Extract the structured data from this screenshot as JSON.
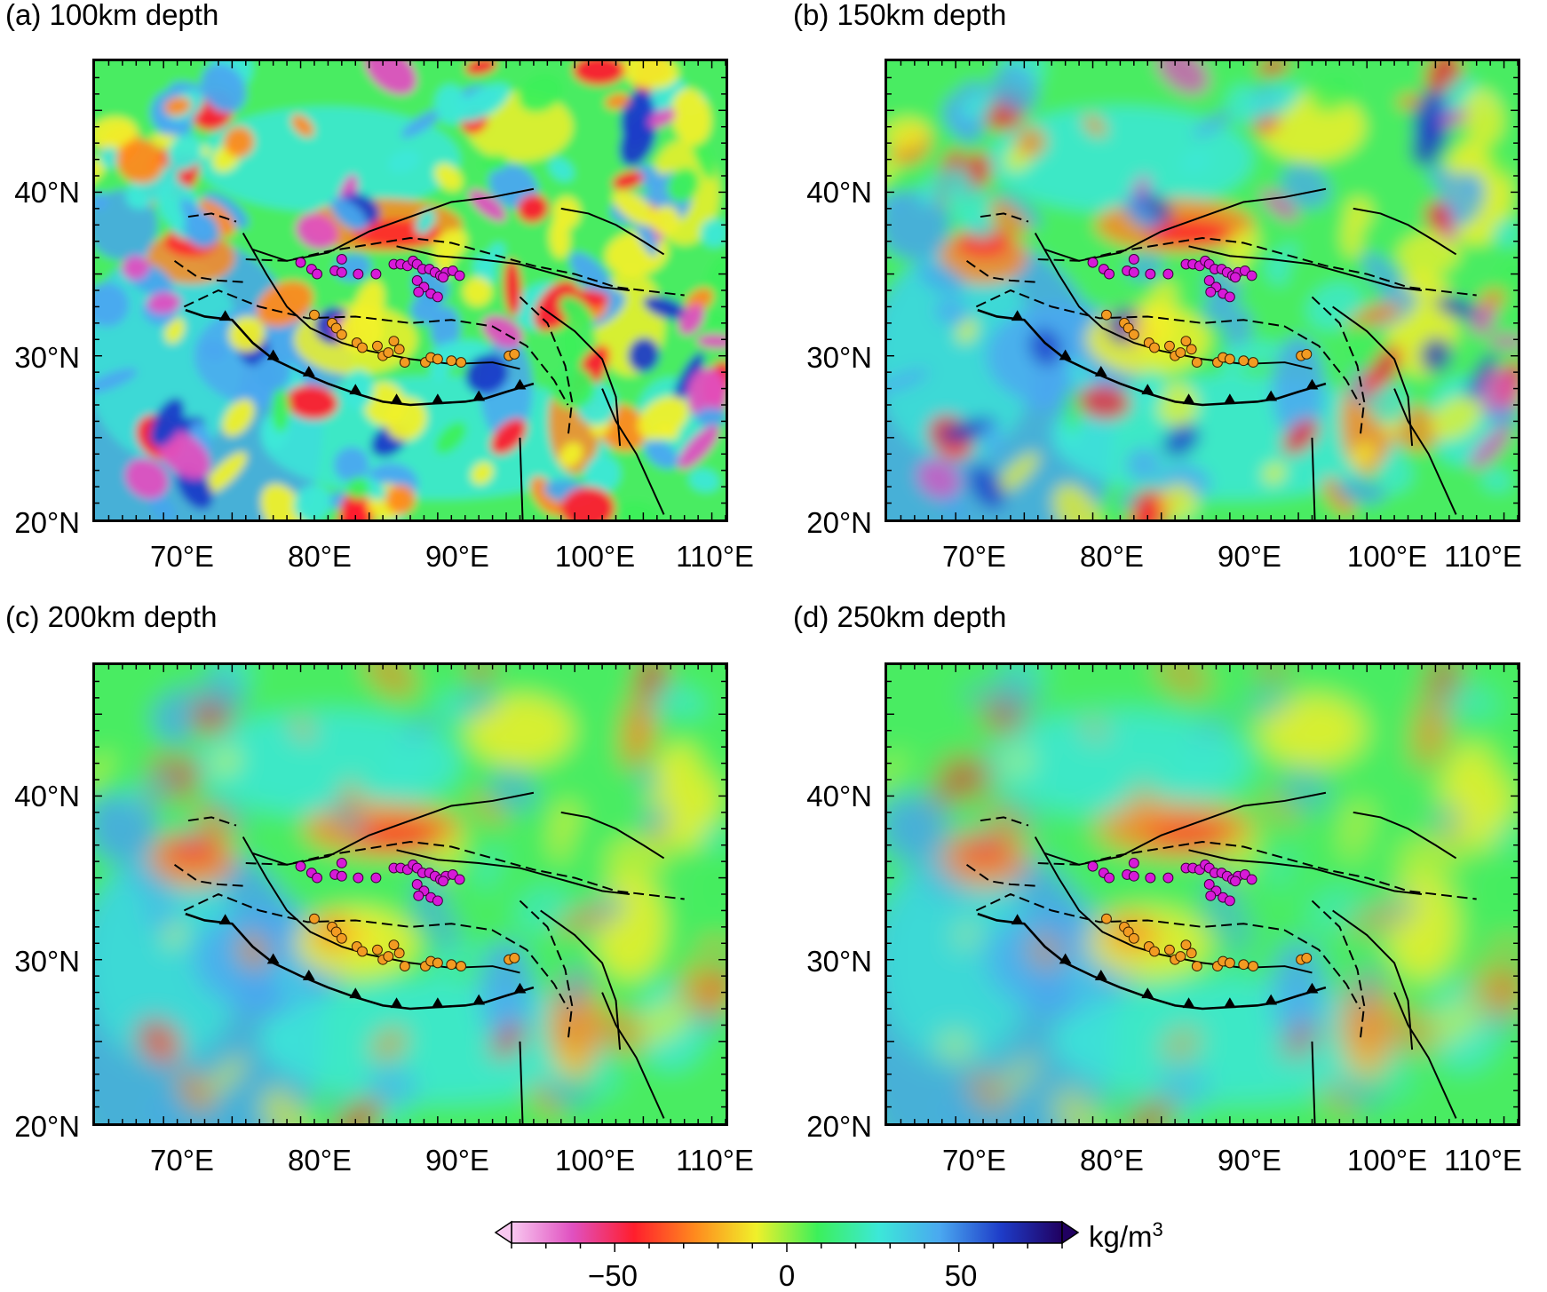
{
  "panels": [
    {
      "id": "a",
      "title": "(a) 100km depth",
      "smooth": 0
    },
    {
      "id": "b",
      "title": "(b) 150km depth",
      "smooth": 1
    },
    {
      "id": "c",
      "title": "(c) 200km depth",
      "smooth": 2
    },
    {
      "id": "d",
      "title": "(d) 250km depth",
      "smooth": 3
    }
  ],
  "axes": {
    "lat_labels": [
      "40°N",
      "30°N",
      "20°N"
    ],
    "lon_labels": [
      "70°E",
      "80°E",
      "90°E",
      "100°E",
      "110°E"
    ],
    "lon_range": [
      65,
      111
    ],
    "lat_range": [
      20,
      48
    ]
  },
  "colorbar": {
    "unit_base": "kg/m",
    "unit_exp": "3",
    "tick_labels": [
      "−50",
      "0",
      "50"
    ],
    "range": [
      -80,
      80
    ],
    "colors": [
      "#f8c8f0",
      "#e050c0",
      "#ff1e2d",
      "#ff8a1e",
      "#f0f02a",
      "#3cf05a",
      "#3ce8d8",
      "#4aa8f0",
      "#1e3cc8",
      "#200060"
    ]
  },
  "markers": {
    "magenta_color": "#d71ad8",
    "orange_color": "#f29b22"
  }
}
